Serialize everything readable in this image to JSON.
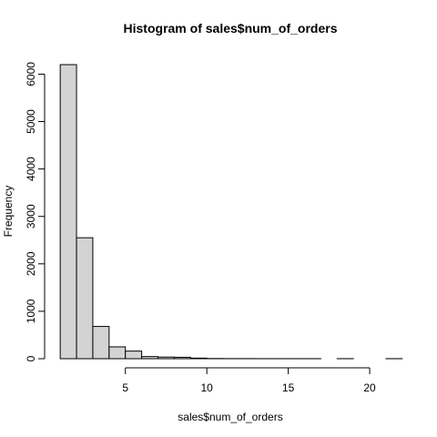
{
  "chart_data": {
    "type": "bar",
    "title": "Histogram of sales$num_of_orders",
    "xlabel": "sales$num_of_orders",
    "ylabel": "Frequency",
    "bins": [
      {
        "start": 1,
        "end": 2,
        "count": 6200
      },
      {
        "start": 2,
        "end": 3,
        "count": 2550
      },
      {
        "start": 3,
        "end": 4,
        "count": 680
      },
      {
        "start": 4,
        "end": 5,
        "count": 250
      },
      {
        "start": 5,
        "end": 6,
        "count": 160
      },
      {
        "start": 6,
        "end": 7,
        "count": 45
      },
      {
        "start": 7,
        "end": 8,
        "count": 35
      },
      {
        "start": 8,
        "end": 9,
        "count": 30
      },
      {
        "start": 9,
        "end": 10,
        "count": 12
      },
      {
        "start": 10,
        "end": 11,
        "count": 4
      },
      {
        "start": 11,
        "end": 12,
        "count": 2
      },
      {
        "start": 12,
        "end": 13,
        "count": 2
      },
      {
        "start": 13,
        "end": 14,
        "count": 1
      },
      {
        "start": 14,
        "end": 15,
        "count": 1
      },
      {
        "start": 15,
        "end": 16,
        "count": 1
      },
      {
        "start": 16,
        "end": 17,
        "count": 1
      },
      {
        "start": 17,
        "end": 18,
        "count": 0
      },
      {
        "start": 18,
        "end": 19,
        "count": 1
      },
      {
        "start": 19,
        "end": 20,
        "count": 0
      },
      {
        "start": 20,
        "end": 21,
        "count": 0
      },
      {
        "start": 21,
        "end": 22,
        "count": 1
      }
    ],
    "xlim": [
      0.6,
      22.4
    ],
    "ylim": [
      0,
      6200
    ],
    "xticks": [
      5,
      10,
      15,
      20
    ],
    "yticks": [
      0,
      1000,
      2000,
      3000,
      4000,
      5000,
      6000
    ],
    "grid": false,
    "bar_fill": "#d3d3d3",
    "bar_stroke": "#000000"
  }
}
